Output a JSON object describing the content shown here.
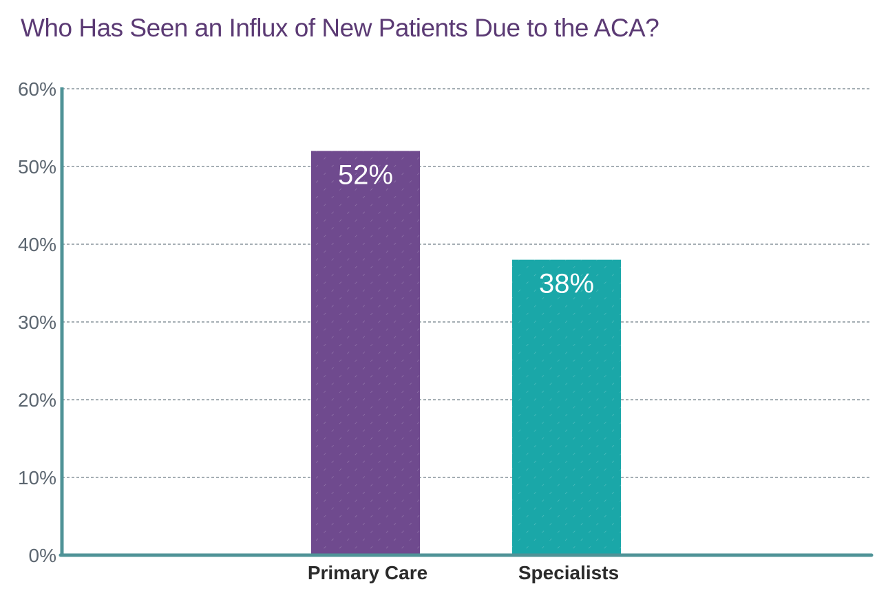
{
  "chart_data": {
    "type": "bar",
    "title": "Who Has Seen an Influx of New Patients Due to the ACA?",
    "categories": [
      "Primary Care",
      "Specialists"
    ],
    "values": [
      52,
      38
    ],
    "data_labels": [
      "52%",
      "38%"
    ],
    "ylim": [
      0,
      60
    ],
    "yticks": [
      0,
      10,
      20,
      30,
      40,
      50,
      60
    ],
    "ytick_labels": [
      "0%",
      "10%",
      "20%",
      "30%",
      "40%",
      "50%",
      "60%"
    ],
    "grid": "horizontal dashed",
    "colors": {
      "title": "#5b3a74",
      "axis": "#4f9397",
      "grid": "#6f7d87",
      "tick_text": "#5c6670",
      "category_text": "#2b2b2b",
      "data_label_text": "#ffffff",
      "bars": [
        "#6f4a8e",
        "#1aa7a8"
      ]
    }
  }
}
